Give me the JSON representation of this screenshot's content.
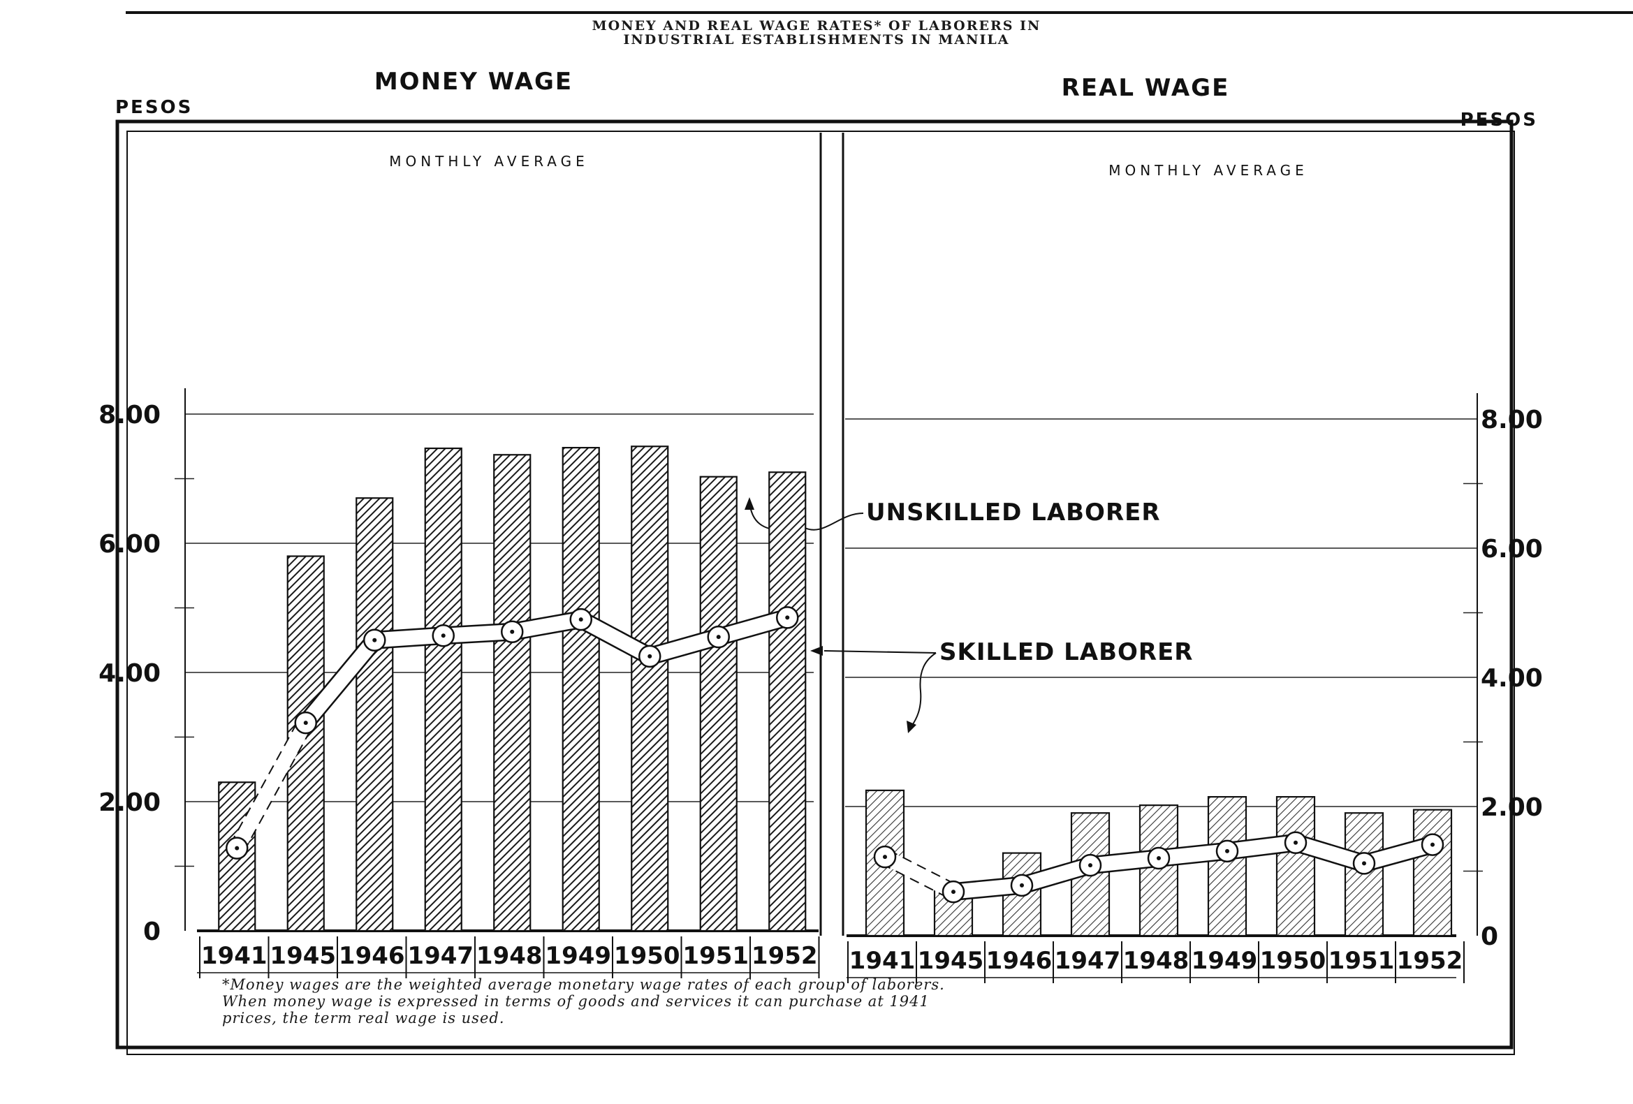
{
  "figure": {
    "title_line1": "MONEY AND REAL WAGE RATES* OF LABORERS IN",
    "title_line2": "INDUSTRIAL ESTABLISHMENTS IN MANILA",
    "footnote_line1": "*Money wages are the weighted average monetary wage rates of each group of laborers.",
    "footnote_line2": "When money wage is expressed in terms of goods and services it can purchase at 1941",
    "footnote_line3": "prices, the term real wage is used.",
    "callout_unskilled": "UNSKILLED LABORER",
    "callout_skilled": "SKILLED LABORER"
  },
  "chart_data": [
    {
      "type": "bar",
      "title": "MONEY WAGE",
      "ylabel": "PESOS",
      "annotation": "MONTHLY AVERAGE",
      "ylim": [
        0,
        8.4
      ],
      "yticks": [
        0,
        2,
        4,
        6,
        8
      ],
      "ytick_labels": [
        "0",
        "2.00",
        "4.00",
        "6.00",
        "8.00"
      ],
      "y_axis_side": "left",
      "grid": true,
      "categories": [
        "1941",
        "1945",
        "1946",
        "1947",
        "1948",
        "1949",
        "1950",
        "1951",
        "1952"
      ],
      "series": [
        {
          "name": "SKILLED LABORER",
          "kind": "bar",
          "values": [
            2.3,
            5.8,
            6.7,
            7.47,
            7.37,
            7.48,
            7.5,
            7.03,
            7.1
          ]
        },
        {
          "name": "UNSKILLED LABORER",
          "kind": "line",
          "values": [
            1.28,
            3.22,
            4.5,
            4.57,
            4.63,
            4.82,
            4.25,
            4.55,
            4.85
          ]
        }
      ]
    },
    {
      "type": "bar",
      "title": "REAL WAGE",
      "ylabel": "PESOS",
      "annotation": "MONTHLY AVERAGE",
      "ylim": [
        0,
        8.4
      ],
      "yticks": [
        0,
        2,
        4,
        6,
        8
      ],
      "ytick_labels": [
        "0",
        "2.00",
        "4.00",
        "6.00",
        "8.00"
      ],
      "y_axis_side": "right",
      "grid": true,
      "categories": [
        "1941",
        "1945",
        "1946",
        "1947",
        "1948",
        "1949",
        "1950",
        "1951",
        "1952"
      ],
      "series": [
        {
          "name": "SKILLED LABORER",
          "kind": "bar",
          "values": [
            2.25,
            0.72,
            1.28,
            1.9,
            2.02,
            2.15,
            2.15,
            1.9,
            1.95
          ]
        },
        {
          "name": "UNSKILLED LABORER",
          "kind": "line",
          "values": [
            1.22,
            0.68,
            0.78,
            1.09,
            1.2,
            1.31,
            1.44,
            1.12,
            1.41
          ]
        }
      ]
    }
  ]
}
